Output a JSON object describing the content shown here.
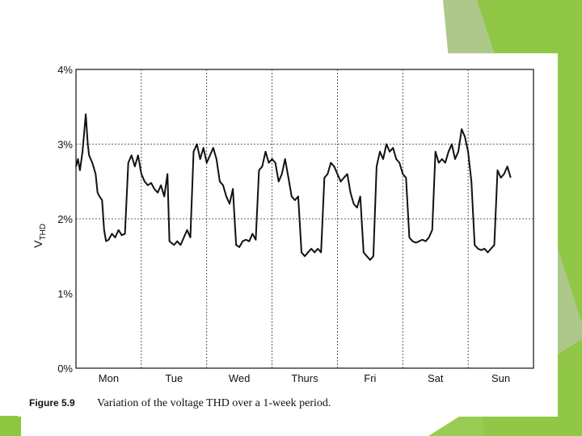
{
  "colors": {
    "accent_green_light": "#8dc63f",
    "accent_green_dark": "#6a9a2a",
    "line": "#111111"
  },
  "caption": {
    "number": "Figure 5.9",
    "text": "Variation of the voltage THD over a 1-week period."
  },
  "chart_data": {
    "type": "line",
    "title": "",
    "xlabel": "",
    "ylabel": "VTHD",
    "ylabel_main": "V",
    "ylabel_sub": "THD",
    "y_unit": "%",
    "ylim": [
      0,
      4
    ],
    "yticks": [
      "0%",
      "1%",
      "2%",
      "3%",
      "4%"
    ],
    "xlim": [
      0,
      7
    ],
    "day_labels": [
      "Mon",
      "Tue",
      "Wed",
      "Thurs",
      "Fri",
      "Sat",
      "Sun"
    ],
    "grid": "dashed vertical day separators and dashed horizontal lines at 2% and 3%",
    "series": [
      {
        "values": [
          [
            0.0,
            2.7
          ],
          [
            0.03,
            2.8
          ],
          [
            0.06,
            2.65
          ],
          [
            0.1,
            2.9
          ],
          [
            0.13,
            3.2
          ],
          [
            0.15,
            3.4
          ],
          [
            0.18,
            3.0
          ],
          [
            0.2,
            2.85
          ],
          [
            0.25,
            2.75
          ],
          [
            0.3,
            2.6
          ],
          [
            0.33,
            2.35
          ],
          [
            0.36,
            2.3
          ],
          [
            0.4,
            2.25
          ],
          [
            0.43,
            1.85
          ],
          [
            0.46,
            1.7
          ],
          [
            0.5,
            1.72
          ],
          [
            0.55,
            1.8
          ],
          [
            0.6,
            1.75
          ],
          [
            0.65,
            1.85
          ],
          [
            0.7,
            1.78
          ],
          [
            0.75,
            1.8
          ],
          [
            0.8,
            2.75
          ],
          [
            0.85,
            2.85
          ],
          [
            0.9,
            2.7
          ],
          [
            0.95,
            2.85
          ],
          [
            1.0,
            2.6
          ],
          [
            1.05,
            2.5
          ],
          [
            1.1,
            2.45
          ],
          [
            1.15,
            2.48
          ],
          [
            1.2,
            2.4
          ],
          [
            1.25,
            2.35
          ],
          [
            1.3,
            2.45
          ],
          [
            1.35,
            2.3
          ],
          [
            1.4,
            2.6
          ],
          [
            1.43,
            1.7
          ],
          [
            1.5,
            1.65
          ],
          [
            1.55,
            1.7
          ],
          [
            1.6,
            1.65
          ],
          [
            1.7,
            1.85
          ],
          [
            1.75,
            1.75
          ],
          [
            1.8,
            2.9
          ],
          [
            1.85,
            3.0
          ],
          [
            1.9,
            2.8
          ],
          [
            1.95,
            2.95
          ],
          [
            2.0,
            2.75
          ],
          [
            2.05,
            2.85
          ],
          [
            2.1,
            2.95
          ],
          [
            2.15,
            2.8
          ],
          [
            2.2,
            2.5
          ],
          [
            2.25,
            2.45
          ],
          [
            2.3,
            2.3
          ],
          [
            2.35,
            2.2
          ],
          [
            2.4,
            2.4
          ],
          [
            2.45,
            1.65
          ],
          [
            2.5,
            1.62
          ],
          [
            2.55,
            1.7
          ],
          [
            2.6,
            1.72
          ],
          [
            2.65,
            1.7
          ],
          [
            2.7,
            1.8
          ],
          [
            2.75,
            1.72
          ],
          [
            2.8,
            2.65
          ],
          [
            2.85,
            2.7
          ],
          [
            2.9,
            2.9
          ],
          [
            2.95,
            2.75
          ],
          [
            3.0,
            2.8
          ],
          [
            3.05,
            2.75
          ],
          [
            3.1,
            2.5
          ],
          [
            3.15,
            2.6
          ],
          [
            3.2,
            2.8
          ],
          [
            3.25,
            2.55
          ],
          [
            3.3,
            2.3
          ],
          [
            3.35,
            2.25
          ],
          [
            3.4,
            2.3
          ],
          [
            3.45,
            1.55
          ],
          [
            3.5,
            1.5
          ],
          [
            3.55,
            1.55
          ],
          [
            3.6,
            1.6
          ],
          [
            3.65,
            1.55
          ],
          [
            3.7,
            1.6
          ],
          [
            3.75,
            1.55
          ],
          [
            3.8,
            2.55
          ],
          [
            3.85,
            2.6
          ],
          [
            3.9,
            2.75
          ],
          [
            3.95,
            2.7
          ],
          [
            4.0,
            2.6
          ],
          [
            4.05,
            2.5
          ],
          [
            4.1,
            2.55
          ],
          [
            4.15,
            2.6
          ],
          [
            4.2,
            2.35
          ],
          [
            4.25,
            2.2
          ],
          [
            4.3,
            2.15
          ],
          [
            4.35,
            2.3
          ],
          [
            4.4,
            1.55
          ],
          [
            4.45,
            1.5
          ],
          [
            4.5,
            1.45
          ],
          [
            4.55,
            1.5
          ],
          [
            4.6,
            2.7
          ],
          [
            4.65,
            2.9
          ],
          [
            4.7,
            2.8
          ],
          [
            4.75,
            3.0
          ],
          [
            4.8,
            2.9
          ],
          [
            4.85,
            2.95
          ],
          [
            4.9,
            2.8
          ],
          [
            4.95,
            2.75
          ],
          [
            5.0,
            2.6
          ],
          [
            5.05,
            2.55
          ],
          [
            5.1,
            1.75
          ],
          [
            5.15,
            1.7
          ],
          [
            5.2,
            1.68
          ],
          [
            5.25,
            1.7
          ],
          [
            5.3,
            1.72
          ],
          [
            5.35,
            1.7
          ],
          [
            5.4,
            1.75
          ],
          [
            5.45,
            1.85
          ],
          [
            5.5,
            2.9
          ],
          [
            5.55,
            2.75
          ],
          [
            5.6,
            2.8
          ],
          [
            5.65,
            2.75
          ],
          [
            5.7,
            2.9
          ],
          [
            5.75,
            3.0
          ],
          [
            5.8,
            2.8
          ],
          [
            5.85,
            2.9
          ],
          [
            5.9,
            3.2
          ],
          [
            5.95,
            3.1
          ],
          [
            6.0,
            2.9
          ],
          [
            6.05,
            2.5
          ],
          [
            6.1,
            1.65
          ],
          [
            6.15,
            1.6
          ],
          [
            6.2,
            1.58
          ],
          [
            6.25,
            1.6
          ],
          [
            6.3,
            1.55
          ],
          [
            6.35,
            1.6
          ],
          [
            6.4,
            1.65
          ],
          [
            6.45,
            2.65
          ],
          [
            6.5,
            2.55
          ],
          [
            6.55,
            2.6
          ],
          [
            6.6,
            2.7
          ],
          [
            6.65,
            2.55
          ]
        ]
      }
    ]
  }
}
